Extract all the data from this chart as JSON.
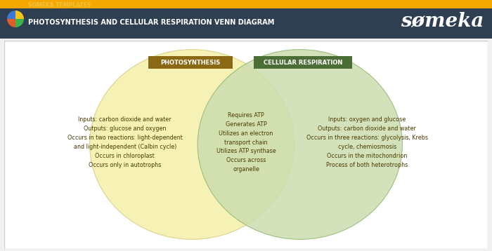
{
  "title_bar_color": "#2e3f52",
  "title_text": "PHOTOSYNTHESIS AND CELLULAR RESPIRATION VENN DIAGRAM",
  "title_text_color": "#ffffff",
  "subtitle_text": "SOMEKA TEMPLATES",
  "subtitle_color": "#f0c040",
  "logo_text": "sømeka",
  "logo_color": "#ffffff",
  "background_color": "#f0f0f0",
  "content_bg": "#ffffff",
  "left_label": "PHOTOSYNTHESIS",
  "left_label_bg": "#8b6914",
  "right_label": "CELLULAR RESPIRATION",
  "right_label_bg": "#4a6e35",
  "left_label_color": "#ffffff",
  "right_label_color": "#ffffff",
  "circle_left_color": "#f5f0a8",
  "circle_right_color": "#ccddb0",
  "circle_left_edge": "#d8cc80",
  "circle_right_edge": "#90b870",
  "circle_alpha": 0.85,
  "left_text": "Inputs: carbon dioxide and water\nOutputs: glucose and oxygen\nOccurs in two reactions: light-dependent\nand light-independent (Calbin cycle)\nOccurs in chloroplast\nOccurs only in autotrophs",
  "center_text": "Requires ATP\nGenerates ATP\nUtilizes an electron\ntransport chain\nUtilizes ATP synthase\nOccurs across\norganelle",
  "right_text": "Inputs: oxygen and glucose\nOutputs: carbon dioxide and water\nOccurs in three reactions: glycolysis, Krebs\ncycle, chemiosmosis\nOccurs in the mitochondrion\nProcess of both heterotrophs",
  "text_color": "#4a3a00",
  "text_fontsize": 5.8,
  "border_color": "#cccccc",
  "header_top_color": "#1a1a1a",
  "orange_strip_color": "#f5a800",
  "icon_colors": [
    "#f5c518",
    "#3a7ad4",
    "#e05c2a",
    "#3ab54a"
  ]
}
